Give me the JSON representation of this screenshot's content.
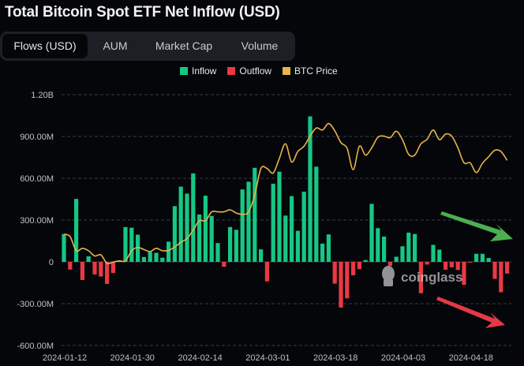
{
  "title": "Total Bitcoin Spot ETF Net Inflow (USD)",
  "tabs": [
    {
      "label": "Flows (USD)",
      "active": true
    },
    {
      "label": "AUM",
      "active": false
    },
    {
      "label": "Market Cap",
      "active": false
    },
    {
      "label": "Volume",
      "active": false
    }
  ],
  "watermark": "coinglass",
  "colors": {
    "inflow": "#16c784",
    "outflow": "#ea3943",
    "btc_price": "#f0b90b",
    "arrow_up": "#4caf50",
    "arrow_down": "#e53945",
    "background": "#05060a"
  },
  "chart_data": {
    "type": "bar",
    "title": "Total Bitcoin Spot ETF Net Inflow (USD)",
    "legend": {
      "placement": "top-center",
      "entries": [
        "Inflow",
        "Outflow",
        "BTC Price"
      ]
    },
    "ylim": [
      -600,
      1200
    ],
    "y_unit": "M USD",
    "y_ticks": [
      {
        "value": 1200,
        "label": "1.20B"
      },
      {
        "value": 900,
        "label": "900.00M"
      },
      {
        "value": 600,
        "label": "600.00M"
      },
      {
        "value": 300,
        "label": "300.00M"
      },
      {
        "value": 0,
        "label": "0"
      },
      {
        "value": -300,
        "label": "-300.00M"
      },
      {
        "value": -600,
        "label": "-600.00M"
      }
    ],
    "x_ticks": [
      {
        "index": 0,
        "label": "2024-01-12"
      },
      {
        "index": 11,
        "label": "2024-01-30"
      },
      {
        "index": 22,
        "label": "2024-02-14"
      },
      {
        "index": 33,
        "label": "2024-03-01"
      },
      {
        "index": 44,
        "label": "2024-03-18"
      },
      {
        "index": 55,
        "label": "2024-04-03"
      },
      {
        "index": 66,
        "label": "2024-04-18"
      }
    ],
    "grid": true,
    "net_flow": [
      200,
      -55,
      452,
      -130,
      40,
      -90,
      -105,
      -158,
      -80,
      10,
      250,
      245,
      195,
      35,
      70,
      65,
      30,
      145,
      400,
      540,
      490,
      635,
      340,
      475,
      330,
      135,
      -35,
      250,
      230,
      520,
      575,
      675,
      90,
      -140,
      561,
      647,
      332,
      472,
      223,
      504,
      1044,
      683,
      131,
      197,
      -156,
      -328,
      -262,
      -96,
      -52,
      13,
      416,
      242,
      182,
      -30,
      37,
      112,
      210,
      200,
      -225,
      -19,
      122,
      88,
      -56,
      -39,
      -58,
      -165,
      -4,
      58,
      58,
      28,
      -122,
      -218,
      -84
    ],
    "btc_price": [
      45800,
      45200,
      41700,
      42300,
      41700,
      40400,
      40700,
      38600,
      38900,
      39200,
      39200,
      41700,
      42500,
      42000,
      41500,
      42300,
      41700,
      41800,
      42600,
      43800,
      44700,
      46800,
      49100,
      49100,
      51300,
      51300,
      51300,
      51800,
      51000,
      50700,
      51300,
      55500,
      62000,
      62000,
      60900,
      64500,
      68100,
      63600,
      66200,
      67500,
      70000,
      72000,
      71500,
      73100,
      71300,
      68400,
      67000,
      61700,
      67500,
      65300,
      67100,
      69700,
      70000,
      69600,
      71200,
      69100,
      65500,
      65300,
      68100,
      69200,
      71500,
      69100,
      70500,
      70000,
      67100,
      63400,
      63400,
      61000,
      63300,
      64900,
      66500,
      66200,
      64000
    ]
  }
}
